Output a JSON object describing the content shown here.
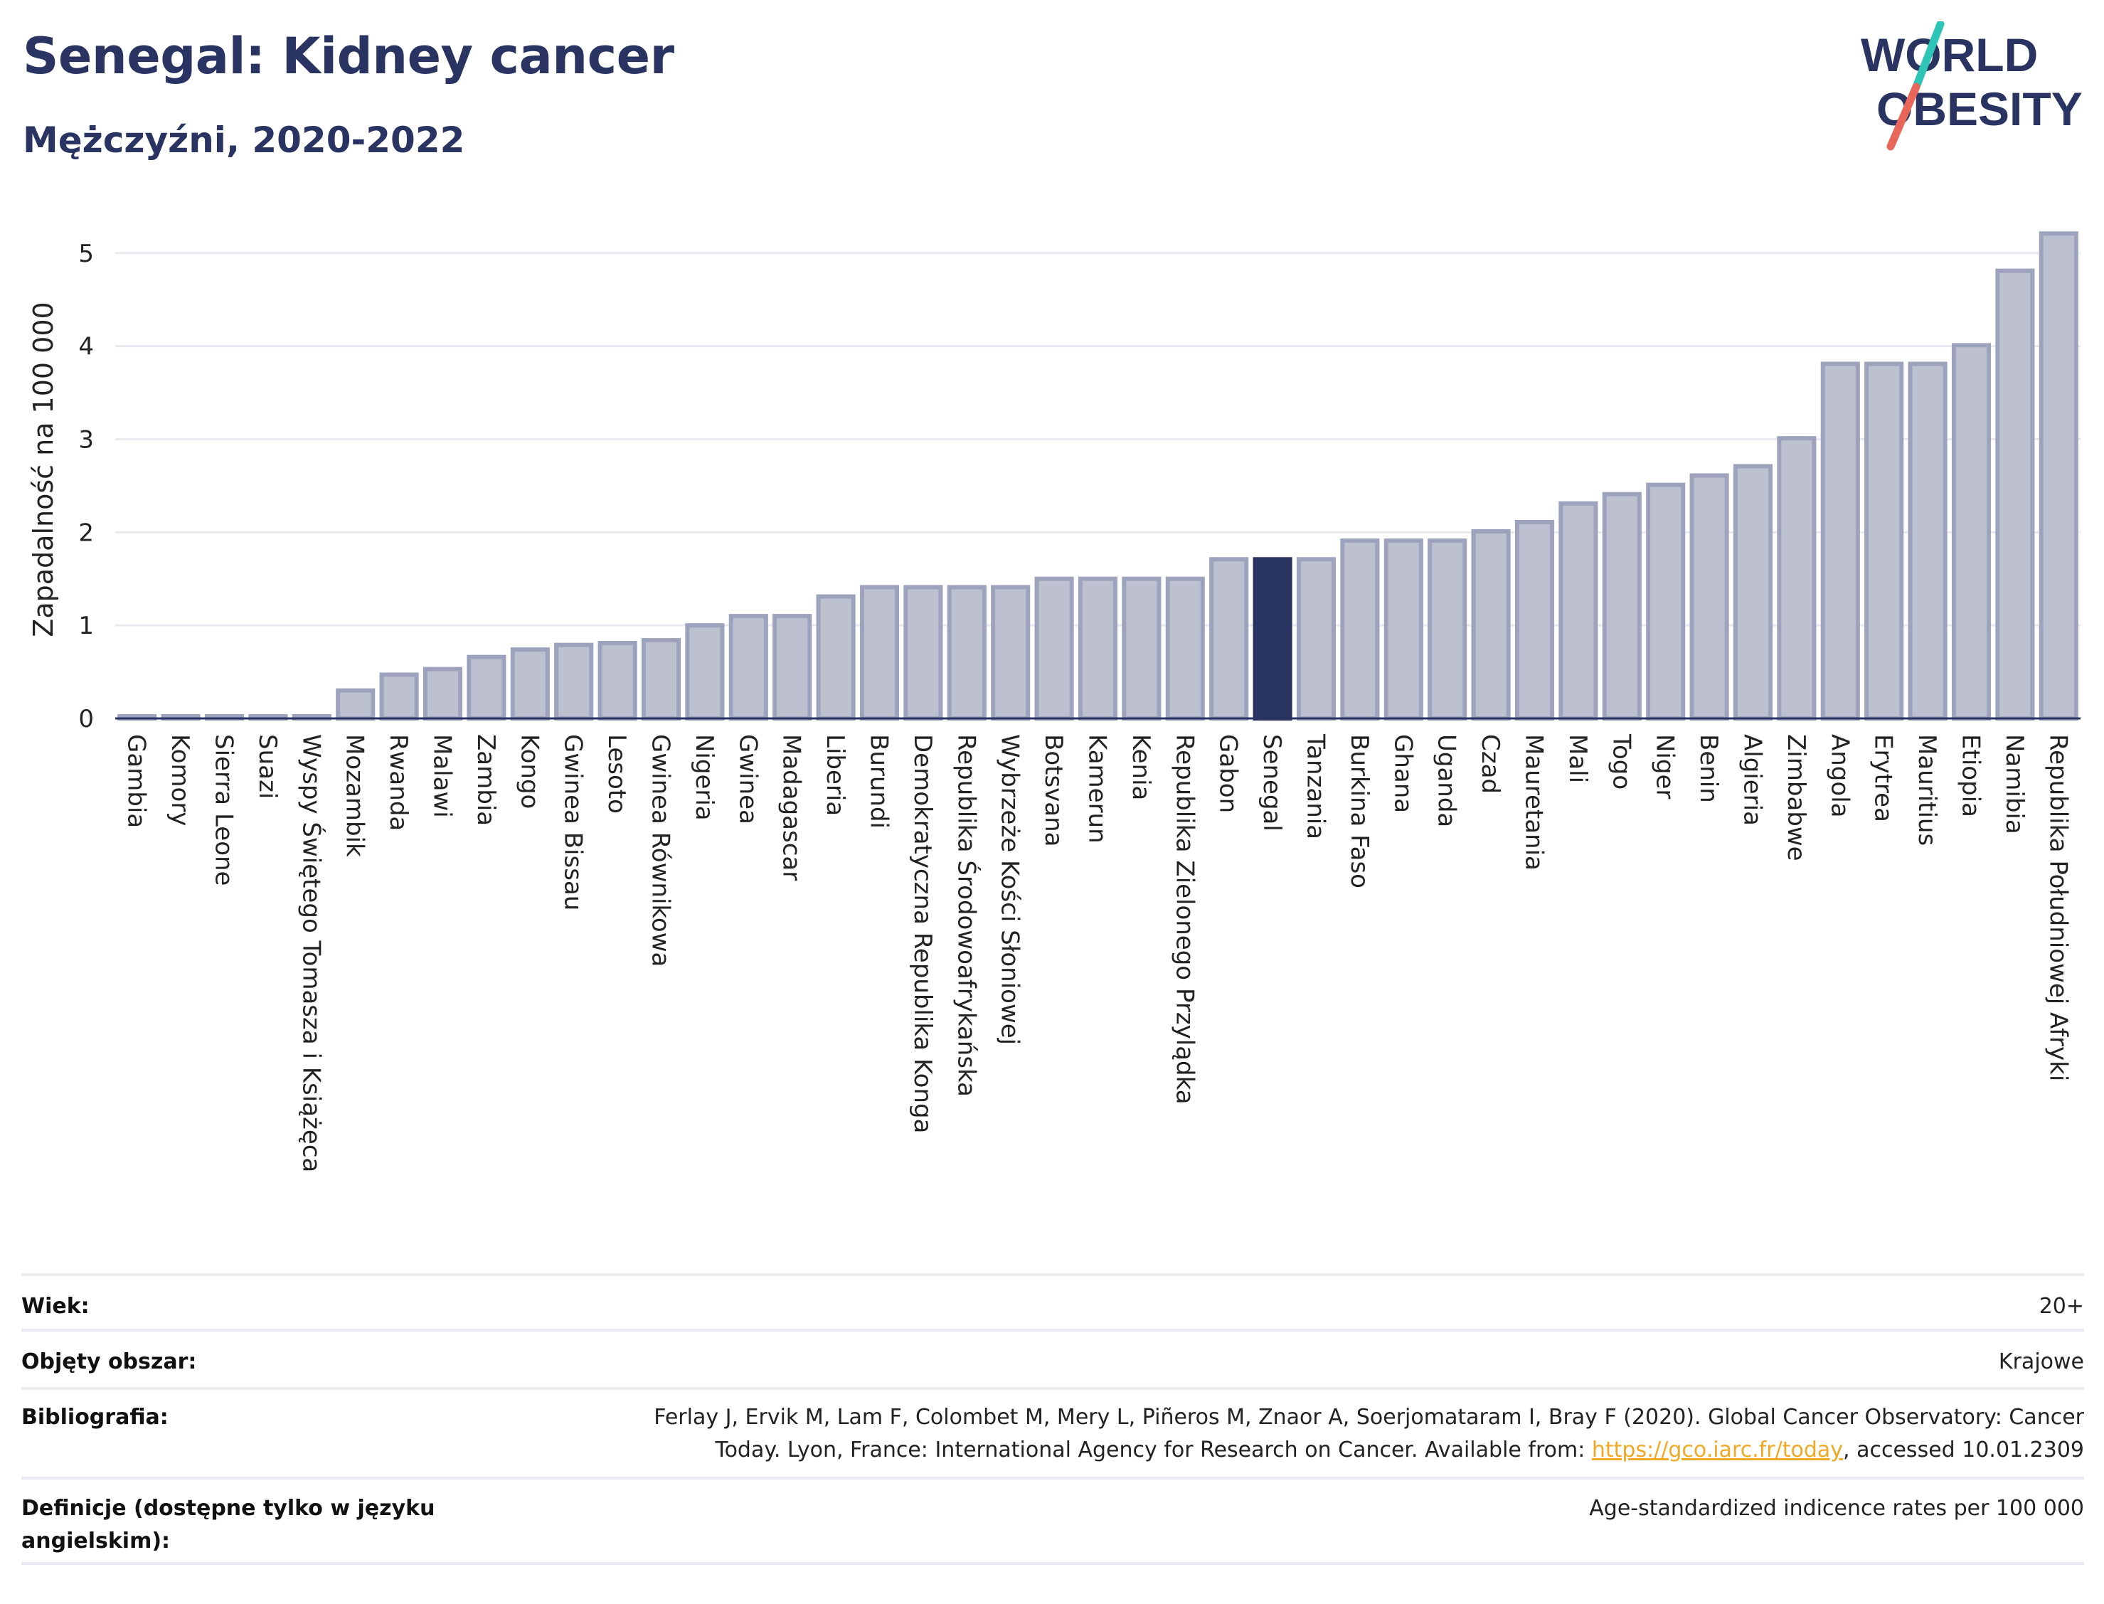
{
  "header": {
    "title": "Senegal: Kidney cancer",
    "subtitle": "Mężczyźni, 2020-2022"
  },
  "logo": {
    "line1": "WORLD",
    "line2": "OBESITY",
    "colors": {
      "text": "#2a3462",
      "slash_top": "#2ec4b6",
      "slash_bottom": "#e8665a"
    }
  },
  "chart_data": {
    "type": "bar",
    "ylabel": "Zapadalność na 100 000",
    "xlabel": "",
    "ylim": [
      0,
      5.35
    ],
    "yticks": [
      0,
      1,
      2,
      3,
      4,
      5
    ],
    "grid": true,
    "highlight": "Senegal",
    "colors": {
      "bar": "#bcc0cf",
      "bar_border": "#9ea3bd",
      "highlight": "#2a3462",
      "grid": "#e8eaf0",
      "axis": "#2a3462"
    },
    "categories": [
      "Gambia",
      "Komory",
      "Sierra Leone",
      "Suazi",
      "Wyspy Świętego Tomasza i Książęca",
      "Mozambik",
      "Rwanda",
      "Malawi",
      "Zambia",
      "Kongo",
      "Gwinea Bissau",
      "Lesoto",
      "Gwinea Równikowa",
      "Nigeria",
      "Gwinea",
      "Madagascar",
      "Liberia",
      "Burundi",
      "Demokratyczna Republika Konga",
      "Republika Środowoafrykańska",
      "Wybrzeże Kości Słoniowej",
      "Botsvana",
      "Kamerun",
      "Kenia",
      "Republika Zielonego Przylądka",
      "Gabon",
      "Senegal",
      "Tanzania",
      "Burkina Faso",
      "Ghana",
      "Uganda",
      "Czad",
      "Mauretania",
      "Mali",
      "Togo",
      "Niger",
      "Benin",
      "Algieria",
      "Zimbabwe",
      "Angola",
      "Erytrea",
      "Mauritius",
      "Etiopia",
      "Namibia",
      "Republika Południowej Afryki"
    ],
    "values": [
      0.0,
      0.0,
      0.0,
      0.0,
      0.0,
      0.3,
      0.47,
      0.53,
      0.66,
      0.74,
      0.79,
      0.81,
      0.84,
      1.0,
      1.1,
      1.1,
      1.31,
      1.41,
      1.41,
      1.41,
      1.41,
      1.5,
      1.5,
      1.5,
      1.5,
      1.71,
      1.71,
      1.71,
      1.91,
      1.91,
      1.91,
      2.01,
      2.11,
      2.31,
      2.41,
      2.51,
      2.61,
      2.71,
      3.01,
      3.81,
      3.81,
      3.81,
      4.01,
      4.81,
      5.21
    ]
  },
  "info": {
    "age_label": "Wiek:",
    "age_value": "20+",
    "area_label": "Objęty obszar:",
    "area_value": "Krajowe",
    "bib_label": "Bibliografia:",
    "bib_line1": "Ferlay J, Ervik M, Lam F, Colombet M, Mery L, Piñeros M, Znaor A, Soerjomataram I, Bray F (2020). Global Cancer Observatory: Cancer",
    "bib_line2_pre": "Today. Lyon, France: International Agency for Research on Cancer. Available from: ",
    "bib_link": "https://gco.iarc.fr/today",
    "bib_line2_post": ", accessed 10.01.2309",
    "def_label": "Definicje (dostępne tylko w języku angielskim):",
    "def_value": "Age-standardized indicence rates per 100 000"
  }
}
